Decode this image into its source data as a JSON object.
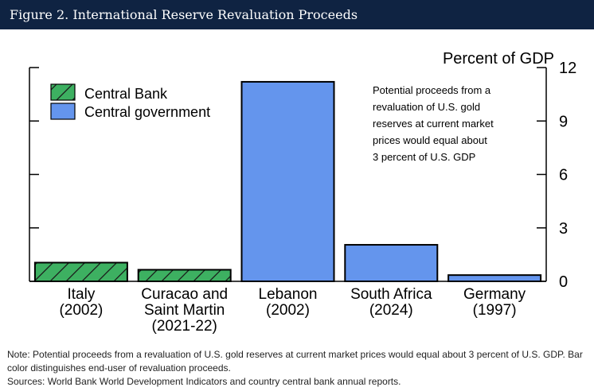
{
  "figure_title": "Figure 2. International Reserve Revaluation Proceeds",
  "colors": {
    "central_bank": "#3db061",
    "central_government": "#6495ed",
    "header_bg": "#0f2342"
  },
  "chart_data": {
    "type": "bar",
    "ylabel": "Percent of GDP",
    "ylim": [
      0,
      12
    ],
    "yticks": [
      "0",
      "3",
      "6",
      "9",
      "12"
    ],
    "categories": [
      [
        "Italy",
        "(2002)"
      ],
      [
        "Curacao and",
        "Saint Martin",
        "(2021-22)"
      ],
      [
        "Lebanon",
        "(2002)"
      ],
      [
        "South Africa",
        "(2024)"
      ],
      [
        "Germany",
        "(1997)"
      ]
    ],
    "values": [
      1.05,
      0.65,
      11.2,
      2.05,
      0.35
    ],
    "series_of_bar": [
      "Central Bank",
      "Central Bank",
      "Central government",
      "Central government",
      "Central government"
    ],
    "legend": [
      "Central Bank",
      "Central government"
    ],
    "annotation": [
      "Potential proceeds from a",
      "revaluation of U.S. gold",
      "reserves at current market",
      "prices would equal about",
      "3 percent of U.S. GDP"
    ]
  },
  "footer": {
    "note": "Note: Potential proceeds from a revaluation of U.S. gold reserves at current market prices would equal about 3 percent of U.S. GDP. Bar color distinguishes end-user of revaluation proceeds.",
    "sources": "Sources: World Bank World Development Indicators and country central bank annual reports."
  }
}
